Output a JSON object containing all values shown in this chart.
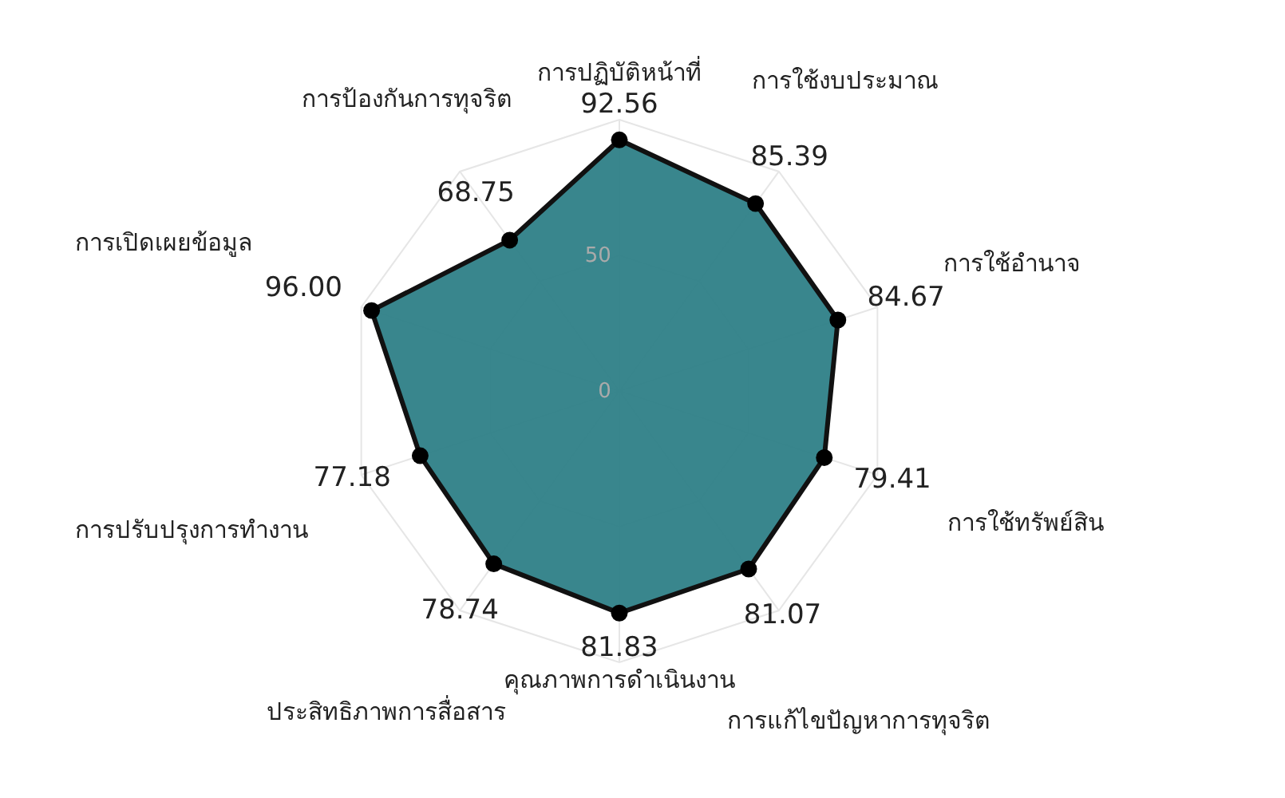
{
  "chart_data": {
    "type": "radar",
    "categories": [
      "การปฏิบัติหน้าที่",
      "การใช้งบประมาณ",
      "การใช้อำนาจ",
      "การใช้ทรัพย์สิน",
      "การแก้ไขปัญหาการทุจริต",
      "คุณภาพการดำเนินงาน",
      "ประสิทธิภาพการสื่อสาร",
      "การปรับปรุงการทำงาน",
      "การเปิดเผยข้อมูล",
      "การป้องกันการทุจริต"
    ],
    "series": [
      {
        "color": "#2e7f87",
        "values": [
          92.56,
          85.39,
          84.67,
          79.41,
          81.07,
          81.83,
          78.74,
          77.18,
          96.0,
          68.75
        ],
        "value_labels": [
          "92.56",
          "85.39",
          "84.67",
          "79.41",
          "81.07",
          "81.83",
          "78.74",
          "77.18",
          "96.00",
          "68.75"
        ]
      }
    ],
    "ylim": [
      0,
      100
    ],
    "yticks": [
      0,
      50
    ],
    "grid": true,
    "marker": "circle"
  }
}
